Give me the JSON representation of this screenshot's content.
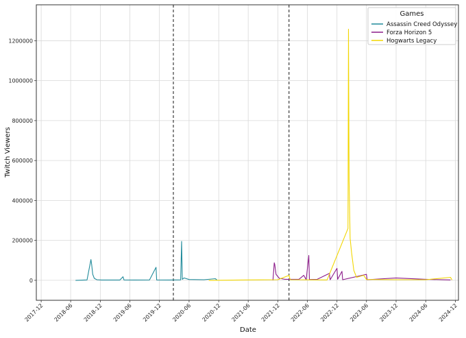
{
  "chart_data": {
    "type": "line",
    "xlabel": "Date",
    "ylabel": "Twitch Viewers",
    "xlim": [
      "2017-11-01",
      "2024-12-20"
    ],
    "ylim": [
      -100000,
      1380000
    ],
    "x_ticks": [
      "2017-12",
      "2018-06",
      "2018-12",
      "2019-06",
      "2019-12",
      "2020-06",
      "2020-12",
      "2021-06",
      "2021-12",
      "2022-06",
      "2022-12",
      "2023-06",
      "2023-12",
      "2024-06",
      "2024-12"
    ],
    "y_ticks": [
      0,
      200000,
      400000,
      600000,
      800000,
      1000000,
      1200000
    ],
    "grid": true,
    "legend": {
      "title": "Games",
      "placement": "top-right"
    },
    "vertical_lines": [
      "2020-02-25",
      "2022-02-08"
    ],
    "series": [
      {
        "name": "Assassin Creed Odyssey",
        "color": "#1f8a9a",
        "points": [
          [
            "2018-07-01",
            0
          ],
          [
            "2018-09-10",
            2000
          ],
          [
            "2018-10-04",
            104000
          ],
          [
            "2018-10-09",
            78000
          ],
          [
            "2018-10-15",
            30000
          ],
          [
            "2018-10-25",
            10000
          ],
          [
            "2018-11-10",
            3000
          ],
          [
            "2018-12-10",
            1500
          ],
          [
            "2019-04-01",
            1500
          ],
          [
            "2019-04-20",
            18000
          ],
          [
            "2019-04-26",
            2000
          ],
          [
            "2019-07-01",
            1500
          ],
          [
            "2019-10-01",
            2000
          ],
          [
            "2019-11-10",
            65000
          ],
          [
            "2019-11-14",
            2000
          ],
          [
            "2020-02-01",
            1500
          ],
          [
            "2020-04-10",
            2500
          ],
          [
            "2020-04-16",
            195000
          ],
          [
            "2020-04-20",
            5000
          ],
          [
            "2020-05-01",
            12000
          ],
          [
            "2020-06-01",
            4000
          ],
          [
            "2020-09-01",
            3000
          ],
          [
            "2020-11-10",
            8000
          ],
          [
            "2020-11-20",
            2000
          ]
        ]
      },
      {
        "name": "Forza Horizon 5",
        "color": "#8b1a89",
        "points": [
          [
            "2021-11-01",
            0
          ],
          [
            "2021-11-09",
            88000
          ],
          [
            "2021-11-12",
            80000
          ],
          [
            "2021-11-20",
            30000
          ],
          [
            "2021-12-10",
            10000
          ],
          [
            "2022-01-15",
            5000
          ],
          [
            "2022-04-10",
            5000
          ],
          [
            "2022-05-10",
            25000
          ],
          [
            "2022-05-25",
            3000
          ],
          [
            "2022-06-10",
            125000
          ],
          [
            "2022-06-14",
            4000
          ],
          [
            "2022-08-01",
            5000
          ],
          [
            "2022-10-15",
            35000
          ],
          [
            "2022-10-20",
            3000
          ],
          [
            "2022-12-01",
            60000
          ],
          [
            "2022-12-05",
            5000
          ],
          [
            "2023-01-01",
            45000
          ],
          [
            "2023-01-05",
            3000
          ],
          [
            "2023-06-01",
            30000
          ],
          [
            "2023-06-05",
            3000
          ],
          [
            "2023-12-01",
            12000
          ],
          [
            "2024-06-01",
            5000
          ],
          [
            "2024-11-01",
            2000
          ]
        ]
      },
      {
        "name": "Hogwarts Legacy",
        "color": "#f2d600",
        "points": [
          [
            "2020-10-01",
            0
          ],
          [
            "2021-06-01",
            2000
          ],
          [
            "2021-12-01",
            3000
          ],
          [
            "2022-02-08",
            25000
          ],
          [
            "2022-02-15",
            3000
          ],
          [
            "2022-10-01",
            2000
          ],
          [
            "2023-02-07",
            260000
          ],
          [
            "2023-02-10",
            1258000
          ],
          [
            "2023-02-14",
            500000
          ],
          [
            "2023-02-20",
            210000
          ],
          [
            "2023-03-01",
            140000
          ],
          [
            "2023-03-15",
            50000
          ],
          [
            "2023-04-01",
            15000
          ],
          [
            "2023-05-15",
            25000
          ],
          [
            "2023-06-01",
            4000
          ],
          [
            "2023-12-01",
            3000
          ],
          [
            "2024-06-01",
            3000
          ],
          [
            "2024-11-01",
            15000
          ],
          [
            "2024-11-10",
            2000
          ]
        ]
      }
    ]
  }
}
